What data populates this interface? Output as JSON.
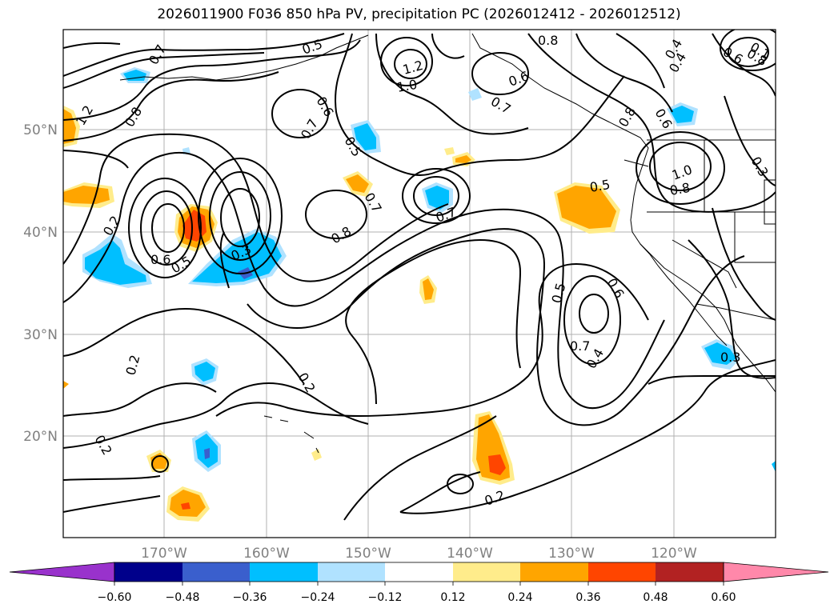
{
  "title": "2026011900 F036 850 hPa PV, precipitation PC (2026012412 - 2026012512)",
  "map": {
    "lat_labels": [
      "50°N",
      "40°N",
      "30°N",
      "20°N"
    ],
    "lon_labels": [
      "170°W",
      "160°W",
      "150°W",
      "140°W",
      "130°W",
      "120°W"
    ],
    "contour_labels": [
      "0.7",
      "0.5",
      "1.0",
      "1.2",
      "0.8",
      "0.8",
      "0.6",
      "0.7",
      "0.6",
      "0.8",
      "0.4",
      "0.6",
      "0.8",
      "0.6",
      "0.7",
      "0.5",
      "1.0",
      "0.8",
      "0.3",
      "0.2",
      "0.6",
      "0.5",
      "0.3",
      "0.7",
      "0.8",
      "0.7",
      "0.5",
      "0.6",
      "0.7",
      "0.4",
      "0.3",
      "0.2",
      "0.2",
      "0.2",
      "0.2",
      "0.1",
      "1.2",
      "0.5",
      "0.4"
    ]
  },
  "colorbar": {
    "colors": [
      "#9932cc",
      "#00008b",
      "#3a5fcd",
      "#00bfff",
      "#b0e2ff",
      "#ffffff",
      "#ffec8b",
      "#ffa500",
      "#ff4500",
      "#b22222",
      "#ff88aa"
    ],
    "ticks": [
      "−0.60",
      "−0.48",
      "−0.36",
      "−0.24",
      "−0.12",
      "0.12",
      "0.24",
      "0.36",
      "0.48",
      "0.60"
    ]
  }
}
